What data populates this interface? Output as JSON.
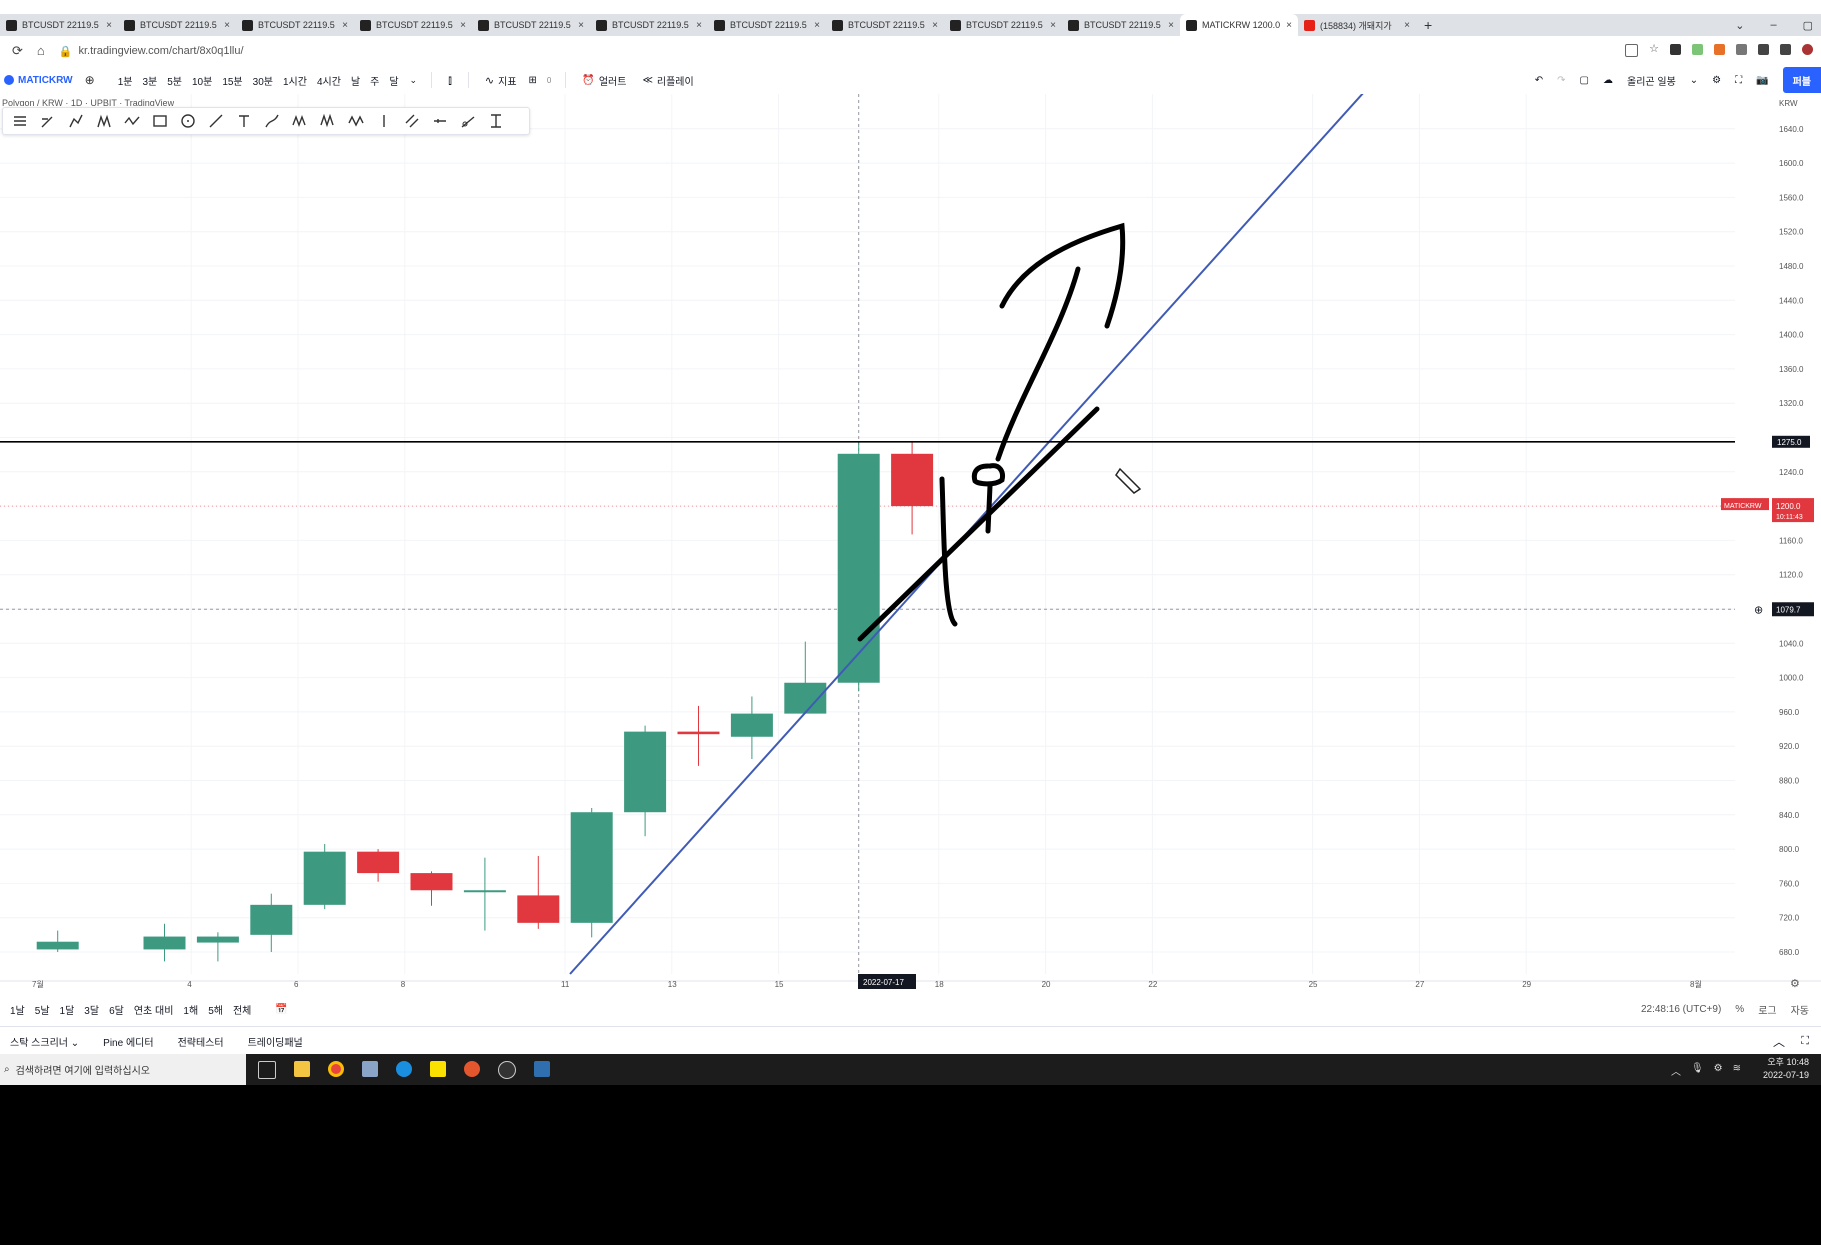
{
  "browser": {
    "tabs": [
      {
        "label": "BTCUSDT 22119.5 ▼",
        "icon": "tradingview-icon",
        "active": false
      },
      {
        "label": "BTCUSDT 22119.5 ▼",
        "icon": "tradingview-icon",
        "active": false
      },
      {
        "label": "BTCUSDT 22119.5 ▼",
        "icon": "tradingview-icon",
        "active": false
      },
      {
        "label": "BTCUSDT 22119.5 ▼",
        "icon": "tradingview-icon",
        "active": false
      },
      {
        "label": "BTCUSDT 22119.5 ▼",
        "icon": "tradingview-icon",
        "active": false
      },
      {
        "label": "BTCUSDT 22119.5 ▼",
        "icon": "tradingview-icon",
        "active": false
      },
      {
        "label": "BTCUSDT 22119.5 ▼",
        "icon": "tradingview-icon",
        "active": false
      },
      {
        "label": "BTCUSDT 22119.5 ▼",
        "icon": "tradingview-icon",
        "active": false
      },
      {
        "label": "BTCUSDT 22119.5 ▼",
        "icon": "tradingview-icon",
        "active": false
      },
      {
        "label": "BTCUSDT 22119.5 ▼",
        "icon": "tradingview-icon",
        "active": false
      },
      {
        "label": "MATICKRW 1200.0",
        "icon": "tradingview-icon",
        "active": true
      },
      {
        "label": "(158834) 개돼지가",
        "icon": "youtube-icon",
        "active": false
      }
    ],
    "url": "kr.tradingview.com/chart/8x0q1llu/",
    "new_tab": "+",
    "close_glyph": "×"
  },
  "toolbar": {
    "symbol": "MATICKRW",
    "intervals": [
      "1분",
      "3분",
      "5분",
      "10분",
      "15분",
      "30분",
      "1시간",
      "4시간",
      "날",
      "주",
      "달"
    ],
    "indicators_label": "지표",
    "indicator_count": "0",
    "alert_label": "얼러트",
    "replay_label": "리플레이",
    "layout_label": "올리곤 일봉",
    "publish_label": "퍼블"
  },
  "chart": {
    "legend_peek": "Polygon / KRW · 1D · UPBIT · TradingView",
    "price_axis_top_label": "KRW",
    "price_ticks": [
      "1640.0",
      "1600.0",
      "1560.0",
      "1520.0",
      "1480.0",
      "1440.0",
      "1400.0",
      "1360.0",
      "1320.0",
      "1240.0",
      "1160.0",
      "1120.0",
      "1040.0",
      "1000.0",
      "960.0",
      "920.0",
      "880.0",
      "840.0",
      "800.0",
      "760.0",
      "720.0",
      "680.0"
    ],
    "time_ticks": [
      "7월",
      "4",
      "6",
      "8",
      "11",
      "13",
      "15",
      "18",
      "20",
      "22",
      "25",
      "27",
      "29",
      "8월"
    ],
    "crosshair_date": "2022-07-17",
    "horizontal_line_label": "1275.0",
    "crosshair_price_label": "1079.7",
    "symbol_tag": "MATICKRW",
    "last_price_label": "1200.0",
    "countdown_label": "10:11:43",
    "colors": {
      "up": "#3d9a80",
      "down": "#e0383e",
      "trendline": "#3f5bb5",
      "hline": "#000000"
    }
  },
  "chart_data": {
    "type": "candlestick",
    "title": "",
    "xlabel": "",
    "ylabel": "",
    "ylim": [
      660,
      1680
    ],
    "candles": [
      {
        "date": "2022-07-02",
        "open": 683,
        "high": 705,
        "low": 680,
        "close": 692
      },
      {
        "date": "2022-07-04",
        "open": 683,
        "high": 713,
        "low": 669,
        "close": 698
      },
      {
        "date": "2022-07-05",
        "open": 691,
        "high": 703,
        "low": 669,
        "close": 698
      },
      {
        "date": "2022-07-06",
        "open": 700,
        "high": 748,
        "low": 680,
        "close": 735
      },
      {
        "date": "2022-07-07",
        "open": 735,
        "high": 806,
        "low": 730,
        "close": 797
      },
      {
        "date": "2022-07-08",
        "open": 797,
        "high": 800,
        "low": 762,
        "close": 772
      },
      {
        "date": "2022-07-09",
        "open": 772,
        "high": 774,
        "low": 734,
        "close": 752
      },
      {
        "date": "2022-07-10",
        "open": 752,
        "high": 790,
        "low": 705,
        "close": 752
      },
      {
        "date": "2022-07-11",
        "open": 746,
        "high": 792,
        "low": 707,
        "close": 714
      },
      {
        "date": "2022-07-12",
        "open": 714,
        "high": 848,
        "low": 697,
        "close": 843
      },
      {
        "date": "2022-07-13",
        "open": 843,
        "high": 944,
        "low": 815,
        "close": 937
      },
      {
        "date": "2022-07-14",
        "open": 937,
        "high": 967,
        "low": 897,
        "close": 934
      },
      {
        "date": "2022-07-15",
        "open": 931,
        "high": 978,
        "low": 905,
        "close": 958
      },
      {
        "date": "2022-07-16",
        "open": 958,
        "high": 1042,
        "low": 958,
        "close": 994
      },
      {
        "date": "2022-07-17",
        "open": 994,
        "high": 1275,
        "low": 984,
        "close": 1261
      },
      {
        "date": "2022-07-18",
        "open": 1261,
        "high": 1276,
        "low": 1167,
        "close": 1200
      }
    ],
    "hline": 1275.0,
    "last": 1200.0
  },
  "bottom": {
    "ranges": [
      "1날",
      "5날",
      "1달",
      "3달",
      "6달",
      "연초 대비",
      "1해",
      "5해",
      "전체"
    ],
    "time_label": "22:48:16 (UTC+9)",
    "percent": "%",
    "log": "로그",
    "auto": "자동",
    "panels": [
      "스탁 스크리너",
      "Pine 에디터",
      "전략테스터",
      "트레이딩패널"
    ]
  },
  "taskbar": {
    "search_placeholder": "검색하려면 여기에 입력하십시오",
    "time": "오후 10:48",
    "date": "2022-07-19"
  }
}
